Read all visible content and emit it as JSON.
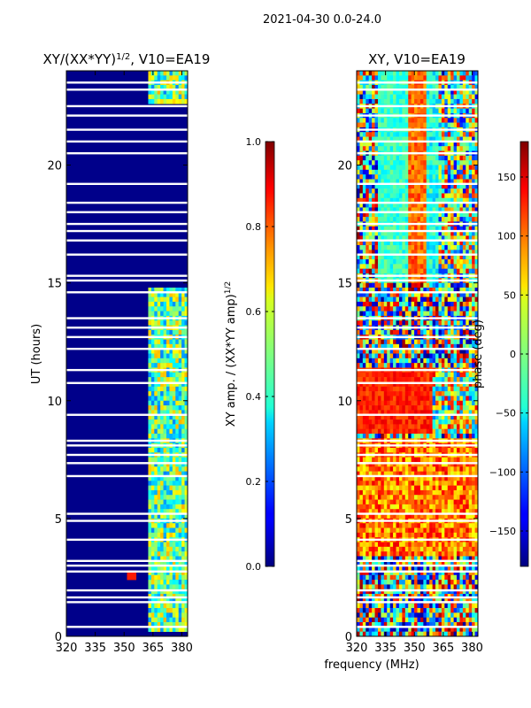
{
  "chart_data": {
    "type": "heatmap",
    "suptitle": "2021-04-30 0.0-24.0",
    "xlabel": "frequency (MHz)",
    "panels": [
      {
        "title": "XY/(XX*YY)",
        "title_exponent": "1/2",
        "title_suffix": ", V10=EA19",
        "ylabel": "UT (hours)",
        "xlim": [
          320,
          383
        ],
        "ylim": [
          0,
          24
        ],
        "xticks": [
          320,
          335,
          350,
          365,
          380
        ],
        "yticks": [
          0,
          5,
          10,
          15,
          20
        ],
        "colorbar": {
          "label": "XY amp. / (XX*YY amp)",
          "label_exponent": "1/2",
          "range": [
            0.0,
            1.0
          ],
          "ticks": [
            "0.0",
            "0.2",
            "0.4",
            "0.6",
            "0.8",
            "1.0"
          ],
          "tick_values": [
            0.0,
            0.2,
            0.4,
            0.6,
            0.8,
            1.0
          ]
        }
      },
      {
        "title": "XY, V10=EA19",
        "xlim": [
          320,
          383
        ],
        "ylim": [
          0,
          24
        ],
        "xticks": [
          320,
          335,
          350,
          365,
          380
        ],
        "yticks": [
          0,
          5,
          10,
          15,
          20
        ],
        "colorbar": {
          "label": "phase (deg)",
          "range": [
            -180,
            180
          ],
          "ticks": [
            "−150",
            "−100",
            "−50",
            "0",
            "50",
            "100",
            "150"
          ],
          "tick_values": [
            -150,
            -100,
            -50,
            0,
            50,
            100,
            150
          ]
        }
      }
    ],
    "flagged_hours": [
      0.4,
      1.45,
      1.65,
      1.95,
      2.75,
      3.0,
      3.2,
      4.1,
      4.9,
      5.2,
      6.8,
      7.35,
      7.7,
      8.1,
      8.3,
      9.4,
      10.75,
      11.3,
      12.2,
      12.7,
      13.1,
      13.5,
      14.6,
      15.1,
      15.3,
      16.2,
      16.8,
      17.2,
      17.5,
      18.0,
      18.4,
      19.2,
      20.5,
      21.0,
      21.5,
      22.1,
      22.5,
      23.2,
      23.5
    ]
  }
}
